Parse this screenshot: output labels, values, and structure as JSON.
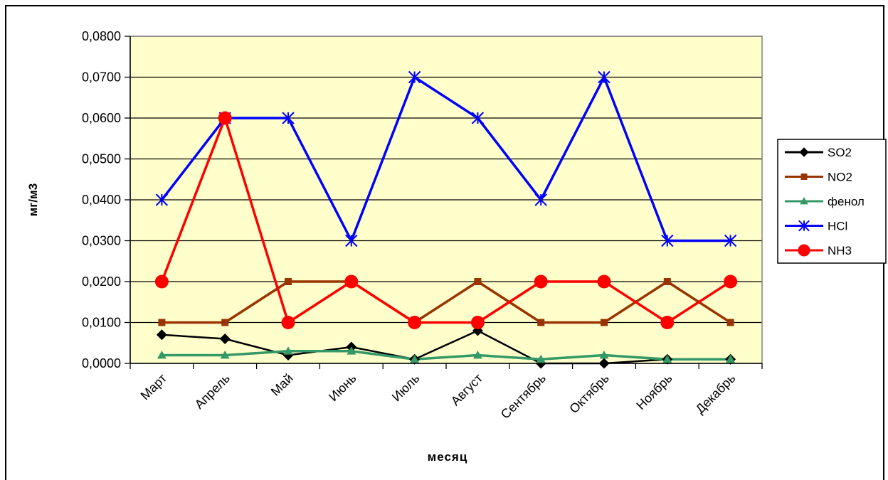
{
  "chart_data": {
    "type": "line",
    "title": "",
    "xlabel": "месяц",
    "ylabel": "мг/м3",
    "ylim": [
      0,
      0.08
    ],
    "yticks": [
      0,
      0.01,
      0.02,
      0.03,
      0.04,
      0.05,
      0.06,
      0.07,
      0.08
    ],
    "ytick_labels": [
      "0,0000",
      "0,0100",
      "0,0200",
      "0,0300",
      "0,0400",
      "0,0500",
      "0,0600",
      "0,0700",
      "0,0800"
    ],
    "categories": [
      "Март",
      "Апрель",
      "Май",
      "Июнь",
      "Июль",
      "Август",
      "Сентябрь",
      "Октябрь",
      "Ноябрь",
      "Декабрь"
    ],
    "grid": "horizontal",
    "plot_background": "#FFFFCC",
    "legend_position": "right",
    "series": [
      {
        "name": "SO2",
        "color": "#000000",
        "marker": "diamond",
        "values": [
          0.007,
          0.006,
          0.002,
          0.004,
          0.001,
          0.008,
          0.0,
          0.0,
          0.001,
          0.001
        ]
      },
      {
        "name": "NO2",
        "color": "#993300",
        "marker": "square",
        "values": [
          0.01,
          0.01,
          0.02,
          0.02,
          0.01,
          0.02,
          0.01,
          0.01,
          0.02,
          0.01
        ]
      },
      {
        "name": "фенол",
        "color": "#339966",
        "marker": "triangle",
        "values": [
          0.002,
          0.002,
          0.003,
          0.003,
          0.001,
          0.002,
          0.001,
          0.002,
          0.001,
          0.001
        ]
      },
      {
        "name": "HCl",
        "color": "#0000FF",
        "marker": "asterisk",
        "values": [
          0.04,
          0.06,
          0.06,
          0.03,
          0.07,
          0.06,
          0.04,
          0.07,
          0.03,
          0.03
        ]
      },
      {
        "name": "NH3",
        "color": "#FF0000",
        "marker": "circle",
        "values": [
          0.02,
          0.06,
          0.01,
          0.02,
          0.01,
          0.01,
          0.02,
          0.02,
          0.01,
          0.02
        ]
      }
    ]
  }
}
